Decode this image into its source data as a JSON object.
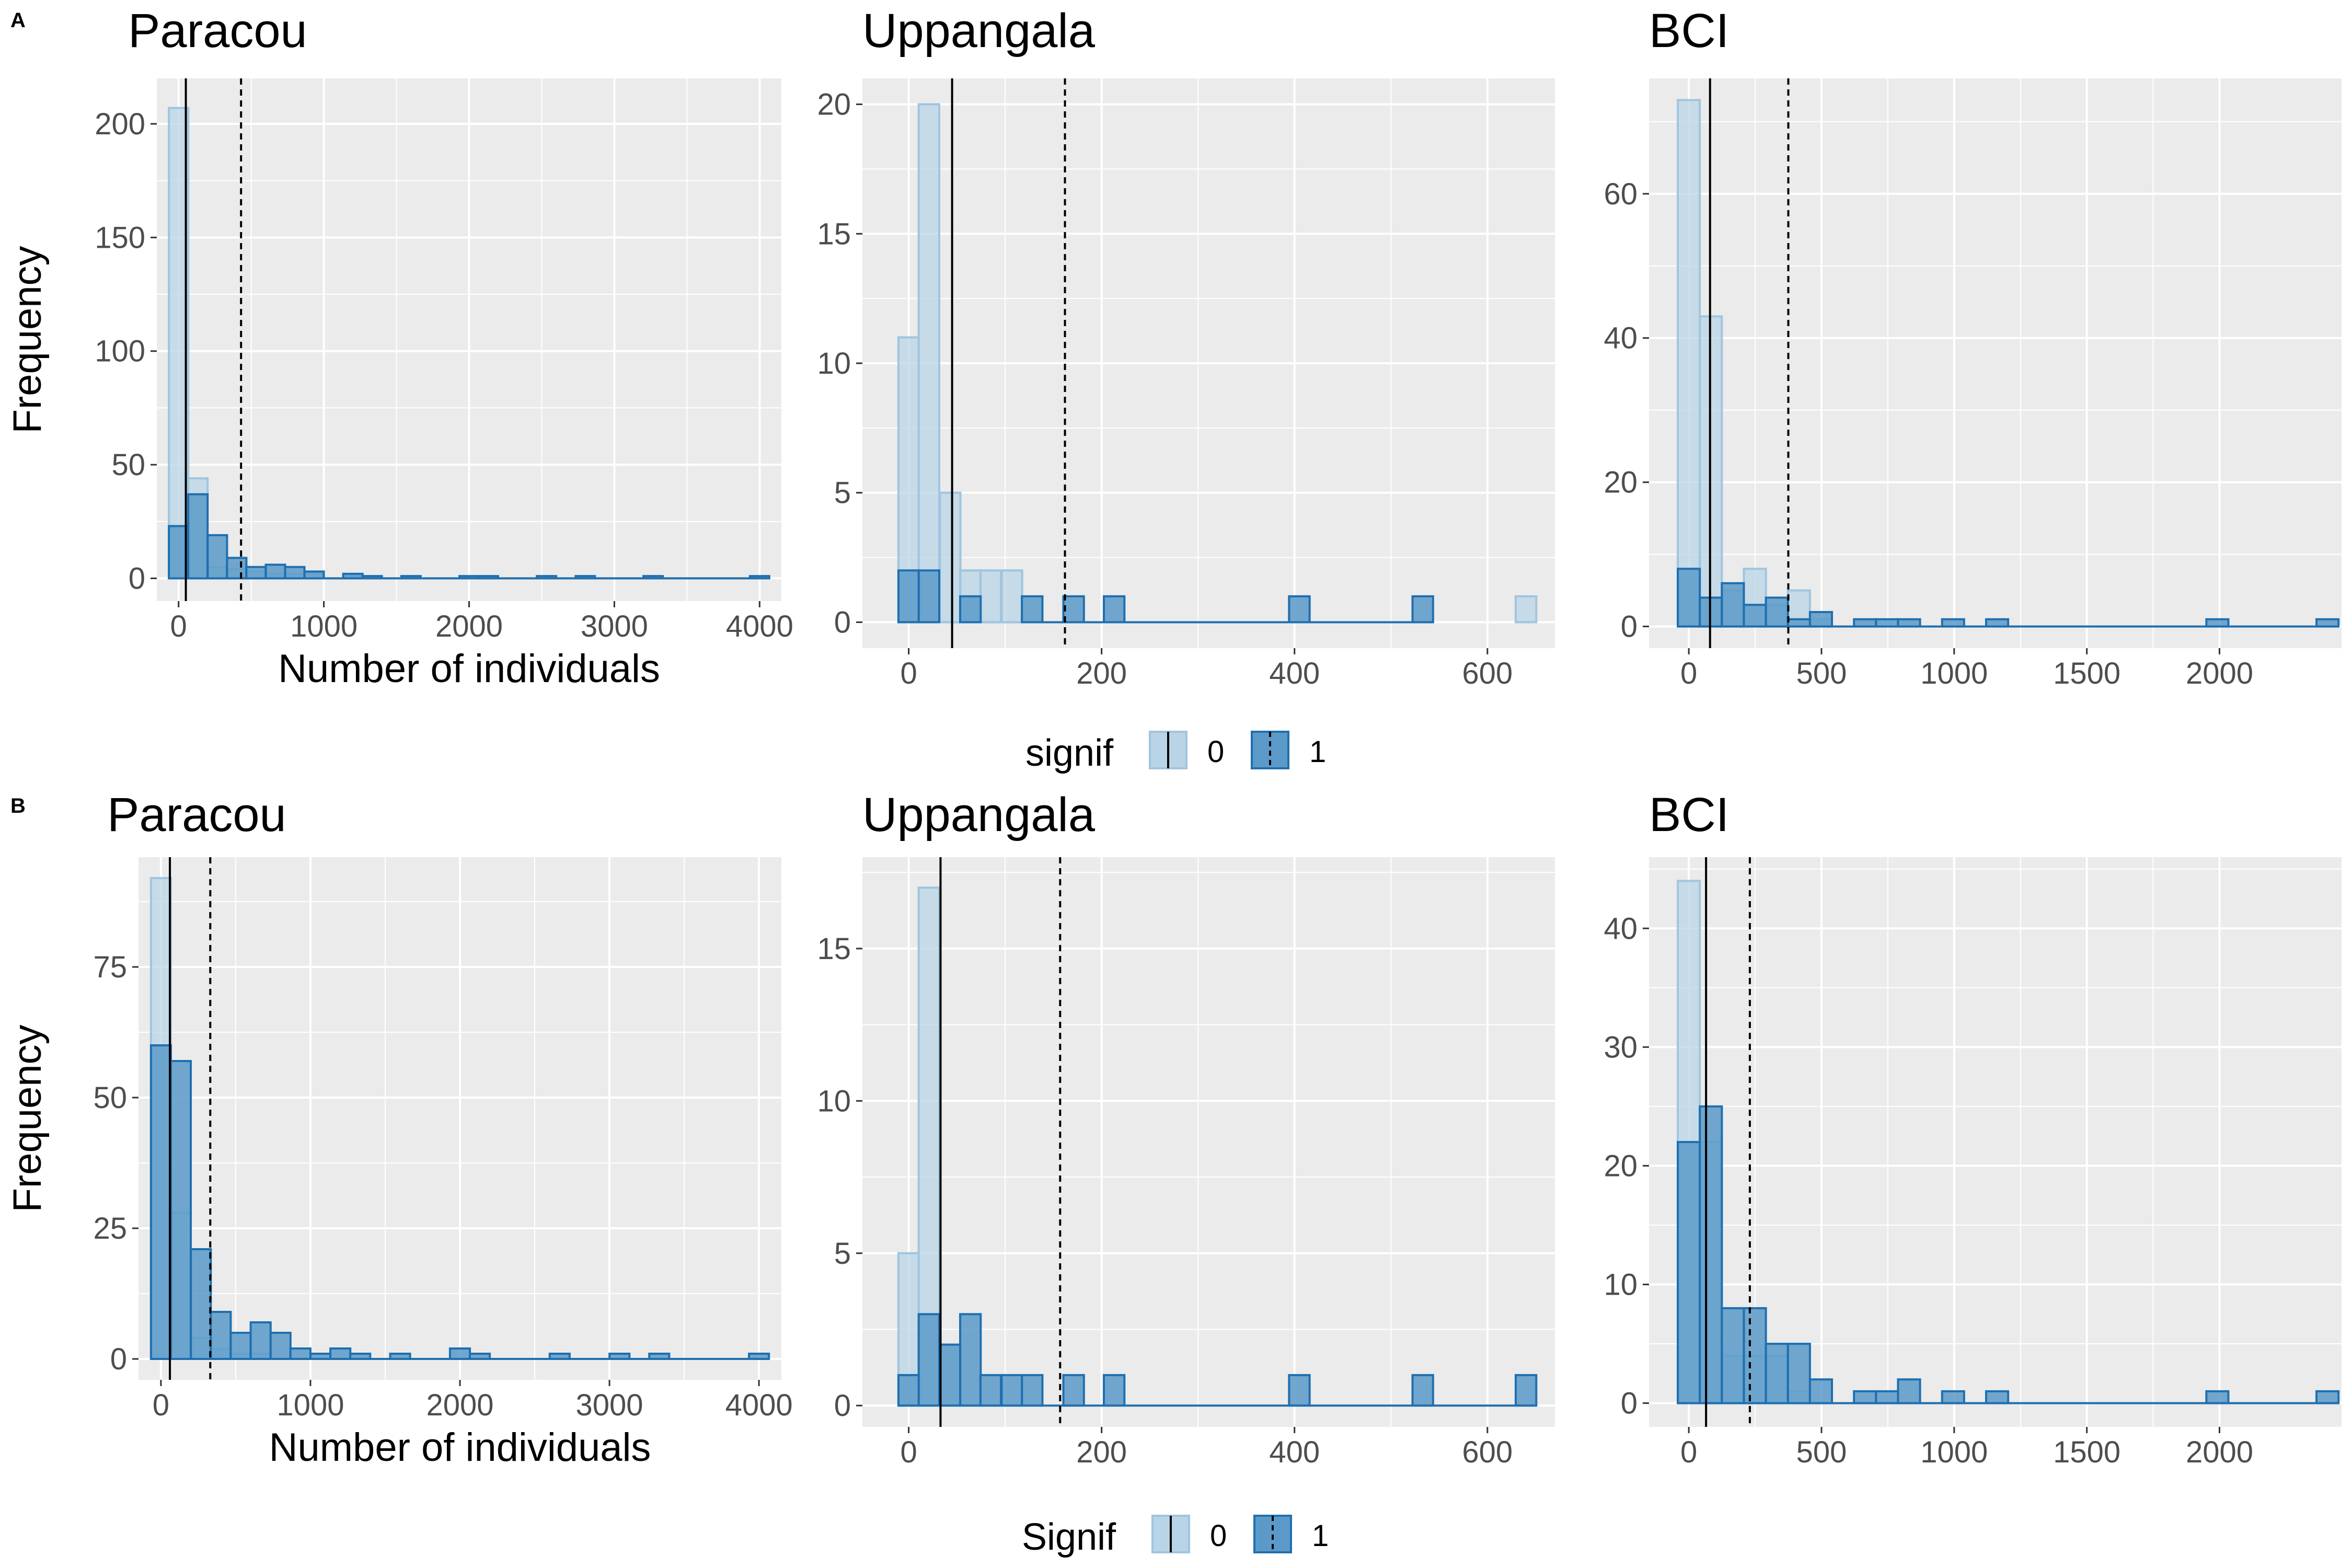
{
  "figure": {
    "row_labels": [
      "A",
      "B"
    ],
    "legends": [
      {
        "title": "signif",
        "labels": [
          "0",
          "1"
        ]
      },
      {
        "title": "Signif",
        "labels": [
          "0",
          "1"
        ]
      }
    ],
    "colors": {
      "panel_bg": "#ebebeb",
      "grid": "#ffffff",
      "signif0_fill": "#b9d4e6",
      "signif0_stroke": "#9fc5e0",
      "signif1_fill": "#5b9ac8",
      "signif1_stroke": "#1f6fb0",
      "vline": "#000000"
    }
  },
  "chart_data": [
    {
      "type": "bar",
      "row": "A",
      "title": "Paracou",
      "xlabel": "Number of individuals",
      "ylabel": "Frequency",
      "xlim": [
        -150,
        4150
      ],
      "ylim": [
        -10,
        220
      ],
      "xticks": [
        0,
        1000,
        2000,
        3000,
        4000
      ],
      "yticks": [
        0,
        50,
        100,
        150,
        200
      ],
      "bin_width": 133.3,
      "series": [
        {
          "name": "0",
          "bins": [
            [
              0,
              207
            ],
            [
              133,
              44
            ],
            [
              267,
              5
            ],
            [
              400,
              4
            ],
            [
              533,
              3
            ],
            [
              667,
              2
            ],
            [
              800,
              2
            ],
            [
              933,
              2
            ],
            [
              1200,
              1
            ],
            [
              1333,
              1
            ],
            [
              1600,
              1
            ]
          ]
        },
        {
          "name": "1",
          "bins": [
            [
              0,
              23
            ],
            [
              133,
              37
            ],
            [
              267,
              19
            ],
            [
              400,
              9
            ],
            [
              533,
              5
            ],
            [
              667,
              6
            ],
            [
              800,
              5
            ],
            [
              933,
              3
            ],
            [
              1200,
              2
            ],
            [
              1333,
              1
            ],
            [
              1600,
              1
            ],
            [
              2000,
              1
            ],
            [
              2133,
              1
            ],
            [
              2533,
              1
            ],
            [
              2800,
              1
            ],
            [
              3267,
              1
            ],
            [
              4000,
              1
            ]
          ]
        }
      ],
      "vlines": [
        {
          "x": 50,
          "style": "solid"
        },
        {
          "x": 430,
          "style": "dashed"
        }
      ]
    },
    {
      "type": "bar",
      "row": "A",
      "title": "Uppangala",
      "xlabel": "",
      "ylabel": "",
      "xlim": [
        -48,
        670
      ],
      "ylim": [
        -1,
        21
      ],
      "xticks": [
        0,
        200,
        400,
        600
      ],
      "yticks": [
        0,
        5,
        10,
        15,
        20
      ],
      "bin_width": 21.3,
      "series": [
        {
          "name": "0",
          "bins": [
            [
              0,
              11
            ],
            [
              21,
              20
            ],
            [
              43,
              5
            ],
            [
              64,
              2
            ],
            [
              85,
              2
            ],
            [
              107,
              2
            ],
            [
              640,
              1
            ]
          ]
        },
        {
          "name": "1",
          "bins": [
            [
              0,
              2
            ],
            [
              21,
              2
            ],
            [
              64,
              1
            ],
            [
              128,
              1
            ],
            [
              171,
              1
            ],
            [
              213,
              1
            ],
            [
              405,
              1
            ],
            [
              533,
              1
            ]
          ]
        }
      ],
      "vlines": [
        {
          "x": 45,
          "style": "solid"
        },
        {
          "x": 162,
          "style": "dashed"
        }
      ]
    },
    {
      "type": "bar",
      "row": "A",
      "title": "BCI",
      "xlabel": "",
      "ylabel": "",
      "xlim": [
        -150,
        2460
      ],
      "ylim": [
        -3,
        76
      ],
      "xticks": [
        0,
        500,
        1000,
        1500,
        2000
      ],
      "yticks": [
        0,
        20,
        40,
        60
      ],
      "bin_width": 83,
      "series": [
        {
          "name": "0",
          "bins": [
            [
              0,
              73
            ],
            [
              83,
              43
            ],
            [
              166,
              5
            ],
            [
              249,
              8
            ],
            [
              332,
              3
            ],
            [
              415,
              5
            ],
            [
              498,
              1
            ]
          ]
        },
        {
          "name": "1",
          "bins": [
            [
              0,
              8
            ],
            [
              83,
              4
            ],
            [
              166,
              6
            ],
            [
              249,
              3
            ],
            [
              332,
              4
            ],
            [
              415,
              1
            ],
            [
              498,
              2
            ],
            [
              664,
              1
            ],
            [
              747,
              1
            ],
            [
              830,
              1
            ],
            [
              996,
              1
            ],
            [
              1162,
              1
            ],
            [
              1992,
              1
            ],
            [
              2407,
              1
            ]
          ]
        }
      ],
      "vlines": [
        {
          "x": 80,
          "style": "solid"
        },
        {
          "x": 375,
          "style": "dashed"
        }
      ]
    },
    {
      "type": "bar",
      "row": "B",
      "title": "Paracou",
      "xlabel": "Number of individuals",
      "ylabel": "Frequency",
      "xlim": [
        -150,
        4150
      ],
      "ylim": [
        -4,
        96
      ],
      "xticks": [
        0,
        1000,
        2000,
        3000,
        4000
      ],
      "yticks": [
        0,
        25,
        50,
        75
      ],
      "bin_width": 133.3,
      "series": [
        {
          "name": "0",
          "bins": [
            [
              0,
              92
            ],
            [
              133,
              28
            ],
            [
              267,
              4
            ],
            [
              400,
              2
            ],
            [
              533,
              1
            ],
            [
              667,
              1
            ]
          ]
        },
        {
          "name": "1",
          "bins": [
            [
              0,
              60
            ],
            [
              133,
              57
            ],
            [
              267,
              21
            ],
            [
              400,
              9
            ],
            [
              533,
              5
            ],
            [
              667,
              7
            ],
            [
              800,
              5
            ],
            [
              933,
              2
            ],
            [
              1067,
              1
            ],
            [
              1200,
              2
            ],
            [
              1333,
              1
            ],
            [
              1600,
              1
            ],
            [
              2000,
              2
            ],
            [
              2133,
              1
            ],
            [
              2667,
              1
            ],
            [
              3067,
              1
            ],
            [
              3333,
              1
            ],
            [
              4000,
              1
            ]
          ]
        }
      ],
      "vlines": [
        {
          "x": 60,
          "style": "solid"
        },
        {
          "x": 330,
          "style": "dashed"
        }
      ]
    },
    {
      "type": "bar",
      "row": "B",
      "title": "Uppangala",
      "xlabel": "",
      "ylabel": "",
      "xlim": [
        -48,
        670
      ],
      "ylim": [
        -0.7,
        18
      ],
      "xticks": [
        0,
        200,
        400,
        600
      ],
      "yticks": [
        0,
        5,
        10,
        15
      ],
      "bin_width": 21.3,
      "series": [
        {
          "name": "0",
          "bins": [
            [
              0,
              5
            ],
            [
              21,
              17
            ],
            [
              43,
              2
            ]
          ]
        },
        {
          "name": "1",
          "bins": [
            [
              0,
              1
            ],
            [
              21,
              3
            ],
            [
              43,
              2
            ],
            [
              64,
              3
            ],
            [
              85,
              1
            ],
            [
              107,
              1
            ],
            [
              128,
              1
            ],
            [
              171,
              1
            ],
            [
              213,
              1
            ],
            [
              405,
              1
            ],
            [
              533,
              1
            ],
            [
              640,
              1
            ]
          ]
        }
      ],
      "vlines": [
        {
          "x": 33,
          "style": "solid"
        },
        {
          "x": 157,
          "style": "dashed"
        }
      ]
    },
    {
      "type": "bar",
      "row": "B",
      "title": "BCI",
      "xlabel": "",
      "ylabel": "",
      "xlim": [
        -150,
        2460
      ],
      "ylim": [
        -2,
        46
      ],
      "xticks": [
        0,
        500,
        1000,
        1500,
        2000
      ],
      "yticks": [
        0,
        10,
        20,
        30,
        40
      ],
      "bin_width": 83,
      "series": [
        {
          "name": "0",
          "bins": [
            [
              0,
              44
            ],
            [
              83,
              22
            ],
            [
              166,
              4
            ],
            [
              249,
              4
            ],
            [
              332,
              4
            ],
            [
              415,
              1
            ]
          ]
        },
        {
          "name": "1",
          "bins": [
            [
              0,
              22
            ],
            [
              83,
              25
            ],
            [
              166,
              8
            ],
            [
              249,
              8
            ],
            [
              332,
              5
            ],
            [
              415,
              5
            ],
            [
              498,
              2
            ],
            [
              664,
              1
            ],
            [
              747,
              1
            ],
            [
              830,
              2
            ],
            [
              996,
              1
            ],
            [
              1162,
              1
            ],
            [
              1992,
              1
            ],
            [
              2407,
              1
            ]
          ]
        }
      ],
      "vlines": [
        {
          "x": 65,
          "style": "solid"
        },
        {
          "x": 230,
          "style": "dashed"
        }
      ]
    }
  ]
}
